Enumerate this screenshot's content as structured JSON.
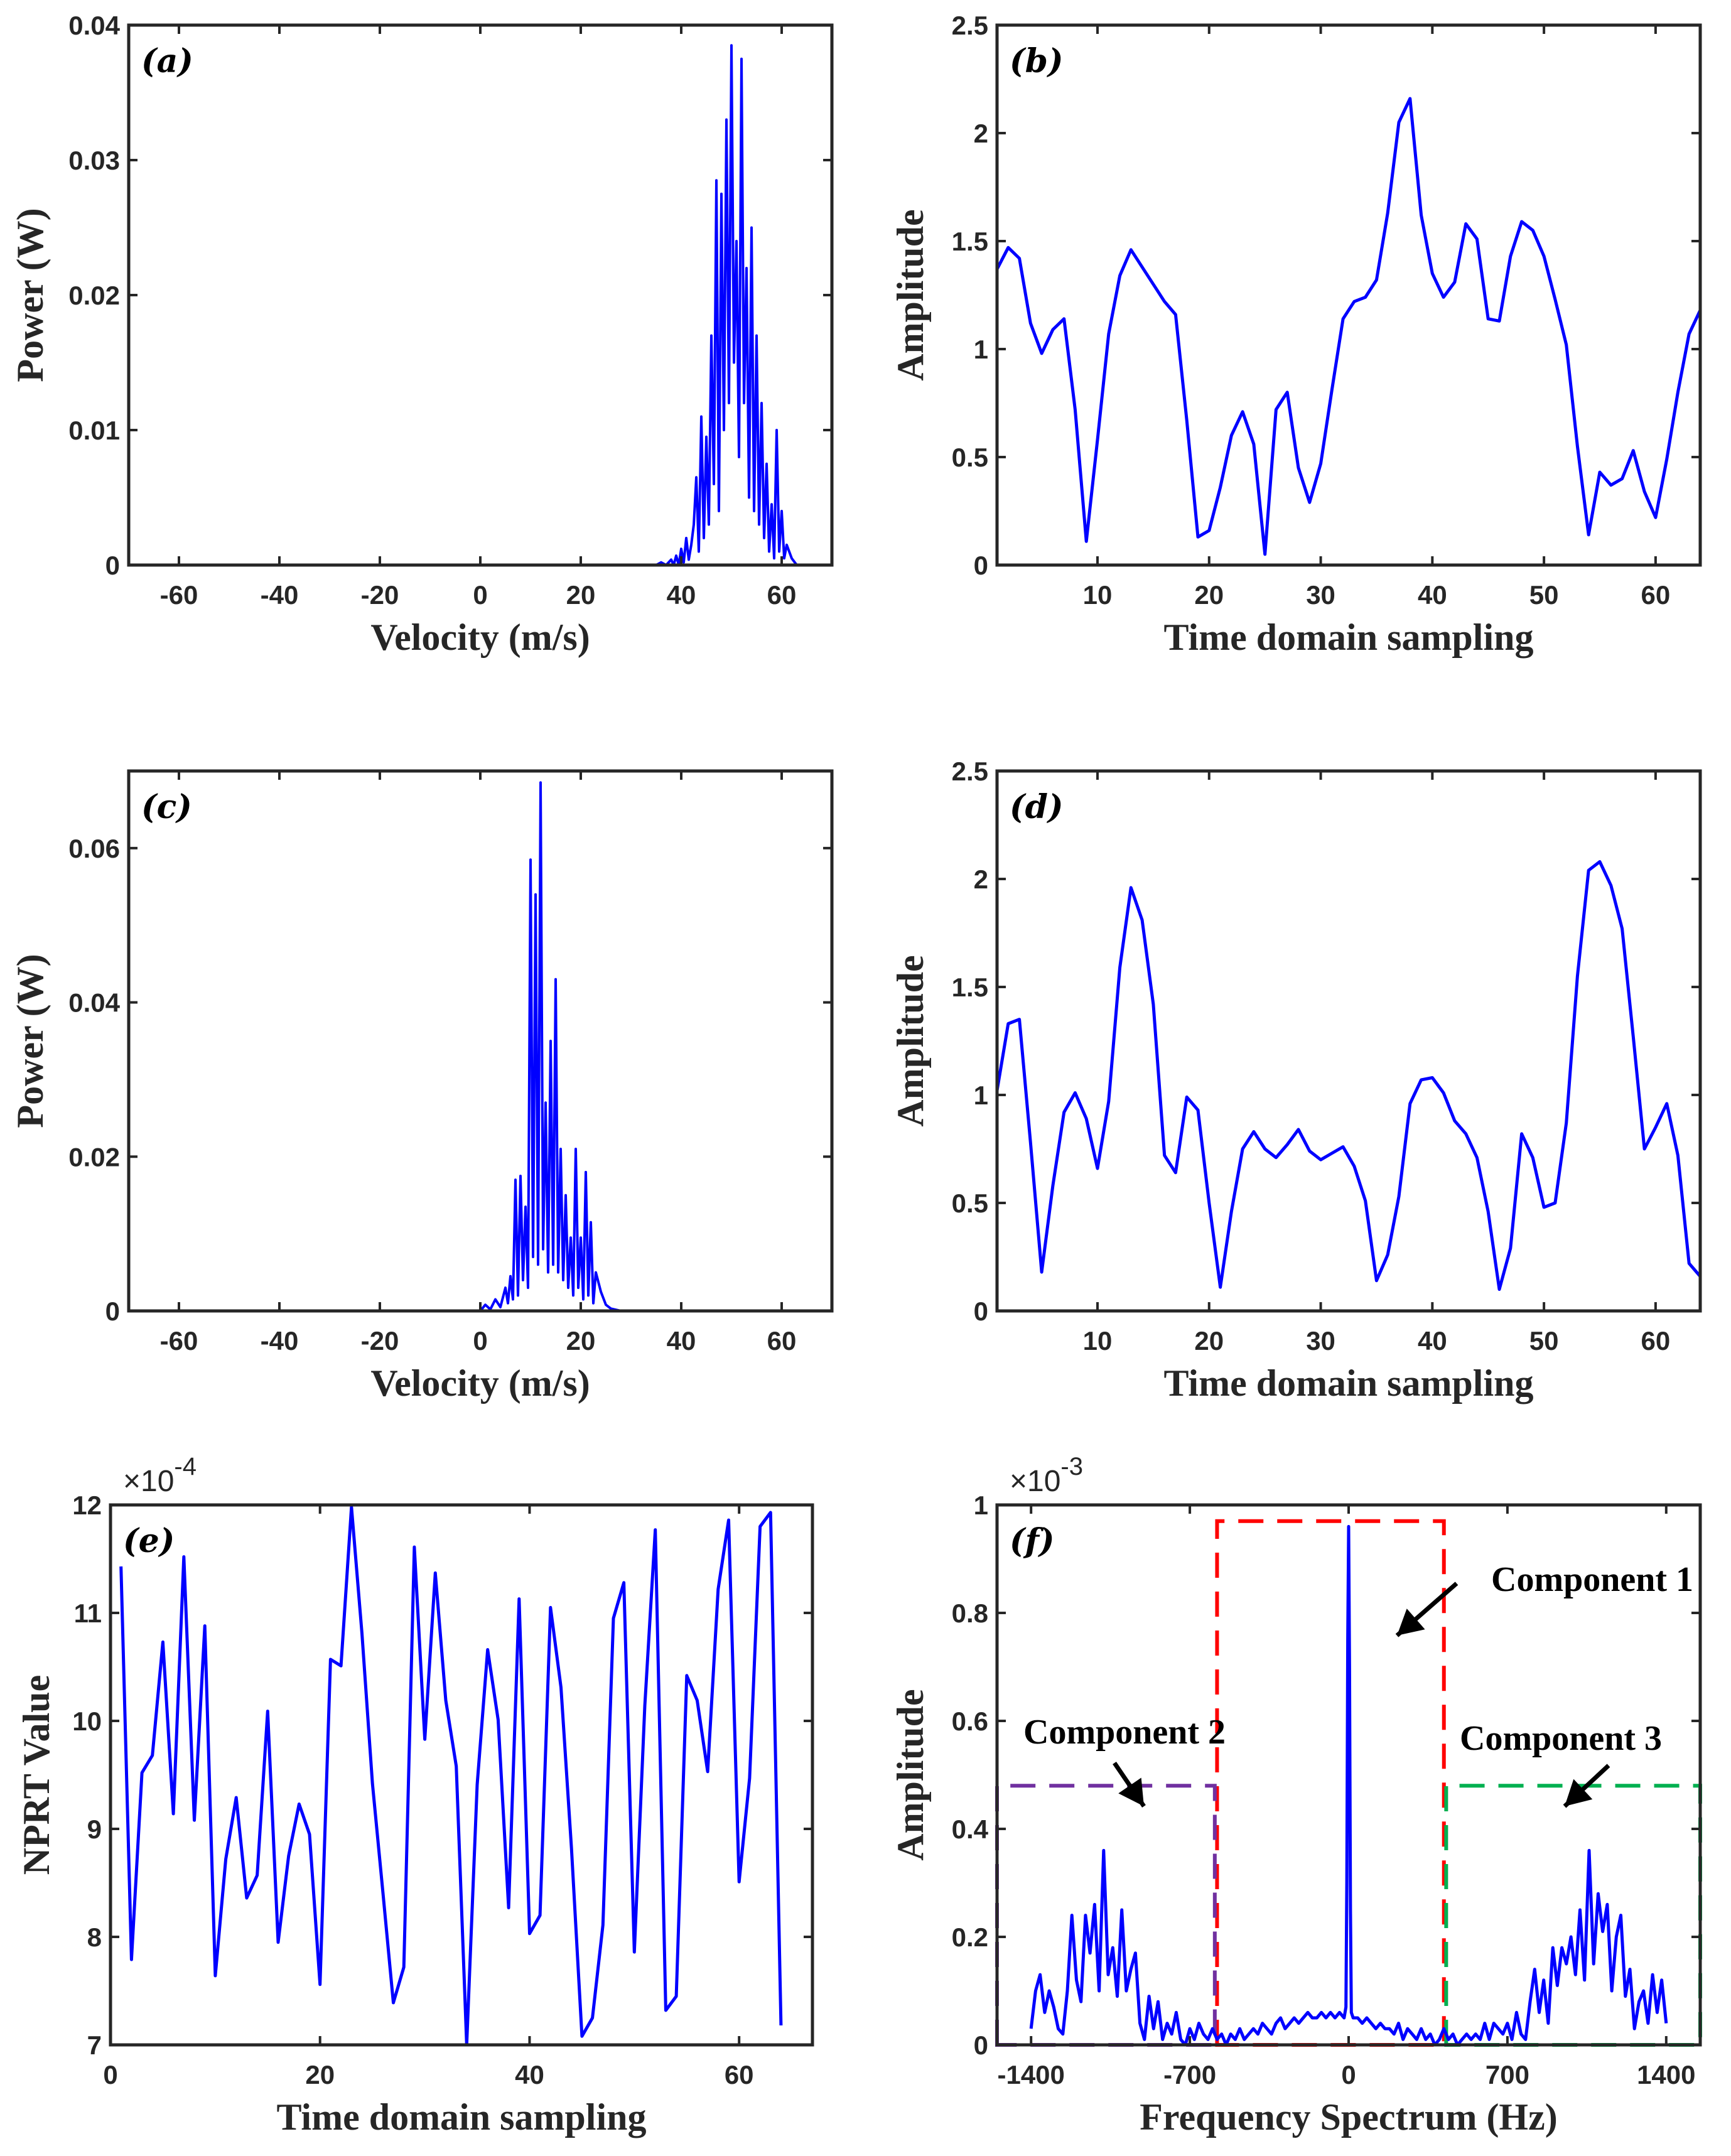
{
  "chart_data": [
    {
      "id": "a",
      "panel_label": "(a)",
      "type": "line",
      "xlabel": "Velocity (m/s)",
      "ylabel": "Power (W)",
      "xlim": [
        -70,
        70
      ],
      "ylim": [
        0,
        0.04
      ],
      "xticks": [
        -60,
        -40,
        -20,
        0,
        20,
        40,
        60
      ],
      "xtick_labels": [
        "-60",
        "-40",
        "-20",
        "0",
        "20",
        "40",
        "60"
      ],
      "yticks": [
        0,
        0.01,
        0.02,
        0.03,
        0.04
      ],
      "ytick_labels": [
        "0",
        "0.01",
        "0.02",
        "0.03",
        "0.04"
      ],
      "color": "#0000ff",
      "x": [
        -70,
        35,
        36,
        37,
        38,
        38.5,
        39,
        39.5,
        40,
        40.5,
        41,
        41.5,
        42,
        42.5,
        43,
        43.5,
        44,
        44.5,
        45,
        45.5,
        46,
        46.5,
        47,
        47.5,
        48,
        48.5,
        49,
        49.5,
        50,
        50.5,
        51,
        51.5,
        52,
        52.5,
        53,
        53.5,
        54,
        54.5,
        55,
        55.5,
        56,
        56.5,
        57,
        57.5,
        58,
        58.5,
        59,
        59.5,
        60,
        60.5,
        61,
        62,
        63,
        70
      ],
      "y": [
        0,
        0,
        0.0002,
        0,
        0.0004,
        0,
        0.0007,
        0,
        0.0012,
        0.0002,
        0.002,
        0.0004,
        0.0015,
        0.003,
        0.0065,
        0.001,
        0.011,
        0.002,
        0.0095,
        0.003,
        0.017,
        0.006,
        0.0285,
        0.004,
        0.0275,
        0.01,
        0.033,
        0.012,
        0.0385,
        0.015,
        0.024,
        0.008,
        0.0375,
        0.012,
        0.022,
        0.005,
        0.025,
        0.004,
        0.017,
        0.003,
        0.012,
        0.002,
        0.0075,
        0.001,
        0.0045,
        0.0005,
        0.01,
        0.001,
        0.004,
        0.0005,
        0.0015,
        0.0005,
        0,
        0
      ]
    },
    {
      "id": "b",
      "panel_label": "(b)",
      "type": "line",
      "xlabel": "Time domain sampling",
      "ylabel": "Amplitude",
      "xlim": [
        1,
        64
      ],
      "ylim": [
        0,
        2.5
      ],
      "xticks": [
        10,
        20,
        30,
        40,
        50,
        60
      ],
      "xtick_labels": [
        "10",
        "20",
        "30",
        "40",
        "50",
        "60"
      ],
      "yticks": [
        0,
        0.5,
        1,
        1.5,
        2,
        2.5
      ],
      "ytick_labels": [
        "0",
        "0.5",
        "1",
        "1.5",
        "2",
        "2.5"
      ],
      "color": "#0000ff",
      "x": [
        1,
        2,
        3,
        4,
        5,
        6,
        7,
        8,
        9,
        10,
        11,
        12,
        13,
        14,
        15,
        16,
        17,
        18,
        19,
        20,
        21,
        22,
        23,
        24,
        25,
        26,
        27,
        28,
        29,
        30,
        31,
        32,
        33,
        34,
        35,
        36,
        37,
        38,
        39,
        40,
        41,
        42,
        43,
        44,
        45,
        46,
        47,
        48,
        49,
        50,
        51,
        52,
        53,
        54,
        55,
        56,
        57,
        58,
        59,
        60,
        61,
        62,
        63,
        64
      ],
      "y": [
        1.37,
        1.47,
        1.42,
        1.12,
        0.98,
        1.09,
        1.14,
        0.72,
        0.11,
        0.58,
        1.07,
        1.34,
        1.46,
        1.38,
        1.3,
        1.22,
        1.16,
        0.67,
        0.13,
        0.16,
        0.36,
        0.6,
        0.71,
        0.56,
        0.05,
        0.72,
        0.8,
        0.45,
        0.29,
        0.47,
        0.81,
        1.14,
        1.22,
        1.24,
        1.32,
        1.63,
        2.05,
        2.16,
        1.62,
        1.35,
        1.24,
        1.31,
        1.58,
        1.51,
        1.14,
        1.13,
        1.43,
        1.59,
        1.55,
        1.43,
        1.23,
        1.02,
        0.55,
        0.14,
        0.43,
        0.37,
        0.4,
        0.53,
        0.34,
        0.22,
        0.49,
        0.8,
        1.07,
        1.18
      ]
    },
    {
      "id": "c",
      "panel_label": "(c)",
      "type": "line",
      "xlabel": "Velocity (m/s)",
      "ylabel": "Power (W)",
      "xlim": [
        -70,
        70
      ],
      "ylim": [
        0,
        0.07
      ],
      "xticks": [
        -60,
        -40,
        -20,
        0,
        20,
        40,
        60
      ],
      "xtick_labels": [
        "-60",
        "-40",
        "-20",
        "0",
        "20",
        "40",
        "60"
      ],
      "yticks": [
        0,
        0.02,
        0.04,
        0.06
      ],
      "ytick_labels": [
        "0",
        "0.02",
        "0.04",
        "0.06"
      ],
      "color": "#0000ff",
      "x": [
        -70,
        0,
        1,
        2,
        3,
        4,
        5,
        5.5,
        6,
        6.5,
        7,
        7.5,
        8,
        8.5,
        9,
        9.5,
        10,
        10.5,
        11,
        11.5,
        12,
        12.5,
        13,
        13.5,
        14,
        14.5,
        15,
        15.5,
        16,
        16.5,
        17,
        17.5,
        18,
        18.5,
        19,
        19.5,
        20,
        20.5,
        21,
        21.5,
        22,
        22.5,
        23,
        24,
        25,
        26,
        28,
        70
      ],
      "y": [
        0,
        0,
        0.0008,
        0.0002,
        0.0015,
        0.0005,
        0.003,
        0.001,
        0.0045,
        0.0015,
        0.017,
        0.002,
        0.0175,
        0.004,
        0.0135,
        0.003,
        0.0585,
        0.007,
        0.054,
        0.006,
        0.0685,
        0.008,
        0.027,
        0.005,
        0.035,
        0.006,
        0.043,
        0.005,
        0.021,
        0.004,
        0.015,
        0.003,
        0.0095,
        0.002,
        0.021,
        0.003,
        0.0095,
        0.0015,
        0.018,
        0.002,
        0.0115,
        0.001,
        0.005,
        0.0025,
        0.0008,
        0.0003,
        0,
        0
      ]
    },
    {
      "id": "d",
      "panel_label": "(d)",
      "type": "line",
      "xlabel": "Time domain sampling",
      "ylabel": "Amplitude",
      "xlim": [
        1,
        64
      ],
      "ylim": [
        0,
        2.5
      ],
      "xticks": [
        10,
        20,
        30,
        40,
        50,
        60
      ],
      "xtick_labels": [
        "10",
        "20",
        "30",
        "40",
        "50",
        "60"
      ],
      "yticks": [
        0,
        0.5,
        1,
        1.5,
        2,
        2.5
      ],
      "ytick_labels": [
        "0",
        "0.5",
        "1",
        "1.5",
        "2",
        "2.5"
      ],
      "color": "#0000ff",
      "x": [
        1,
        2,
        3,
        4,
        5,
        6,
        7,
        8,
        9,
        10,
        11,
        12,
        13,
        14,
        15,
        16,
        17,
        18,
        19,
        20,
        21,
        22,
        23,
        24,
        25,
        26,
        27,
        28,
        29,
        30,
        31,
        32,
        33,
        34,
        35,
        36,
        37,
        38,
        39,
        40,
        41,
        42,
        43,
        44,
        45,
        46,
        47,
        48,
        49,
        50,
        51,
        52,
        53,
        54,
        55,
        56,
        57,
        58,
        59,
        60,
        61,
        62,
        63,
        64
      ],
      "y": [
        1.02,
        1.33,
        1.35,
        0.78,
        0.18,
        0.58,
        0.92,
        1.01,
        0.89,
        0.66,
        0.97,
        1.59,
        1.96,
        1.81,
        1.42,
        0.72,
        0.64,
        0.99,
        0.93,
        0.5,
        0.11,
        0.46,
        0.75,
        0.83,
        0.75,
        0.71,
        0.77,
        0.84,
        0.74,
        0.7,
        0.73,
        0.76,
        0.67,
        0.51,
        0.14,
        0.26,
        0.53,
        0.96,
        1.07,
        1.08,
        1.01,
        0.88,
        0.82,
        0.71,
        0.46,
        0.1,
        0.29,
        0.82,
        0.71,
        0.48,
        0.5,
        0.87,
        1.55,
        2.04,
        2.08,
        1.97,
        1.77,
        1.27,
        0.75,
        0.85,
        0.96,
        0.72,
        0.22,
        0.16
      ]
    },
    {
      "id": "e",
      "panel_label": "(e)",
      "type": "line",
      "xlabel": "Time domain sampling",
      "ylabel": "NPRT Value",
      "exponent_base": "×10",
      "exponent_power": "-4",
      "xlim": [
        0,
        67
      ],
      "ylim": [
        7,
        12
      ],
      "xticks": [
        0,
        20,
        40,
        60
      ],
      "xtick_labels": [
        "0",
        "20",
        "40",
        "60"
      ],
      "yticks": [
        7,
        8,
        9,
        10,
        11,
        12
      ],
      "ytick_labels": [
        "7",
        "8",
        "9",
        "10",
        "11",
        "12"
      ],
      "color": "#0000ff",
      "x": [
        1,
        2,
        3,
        4,
        5,
        6,
        7,
        8,
        9,
        10,
        11,
        12,
        13,
        14,
        15,
        16,
        17,
        18,
        19,
        20,
        21,
        22,
        23,
        24,
        25,
        26,
        27,
        28,
        29,
        30,
        31,
        32,
        33,
        34,
        35,
        36,
        37,
        38,
        39,
        40,
        41,
        42,
        43,
        44,
        45,
        46,
        47,
        48,
        49,
        50,
        51,
        52,
        53,
        54,
        55,
        56,
        57,
        58,
        59,
        60,
        61,
        62,
        63,
        64
      ],
      "y": [
        11.43,
        7.79,
        9.52,
        9.68,
        10.73,
        9.14,
        11.52,
        9.08,
        10.88,
        7.64,
        8.72,
        9.29,
        8.36,
        8.57,
        10.09,
        7.95,
        8.75,
        9.23,
        8.95,
        7.56,
        10.57,
        10.51,
        11.98,
        10.81,
        9.42,
        8.41,
        7.39,
        7.72,
        11.61,
        9.83,
        11.37,
        10.19,
        9.58,
        7.0,
        9.41,
        10.66,
        10.01,
        8.27,
        11.13,
        8.03,
        8.2,
        11.05,
        10.31,
        8.82,
        7.08,
        7.25,
        8.11,
        10.95,
        11.28,
        7.86,
        10.14,
        11.77,
        7.32,
        7.45,
        10.42,
        10.19,
        9.53,
        11.22,
        11.86,
        8.51,
        9.47,
        11.8,
        11.93,
        7.18
      ]
    },
    {
      "id": "f",
      "panel_label": "(f)",
      "type": "line",
      "xlabel": "Frequency Spectrum (Hz)",
      "ylabel": "Amplitude",
      "exponent_base": "×10",
      "exponent_power": "-3",
      "xlim": [
        -1550,
        1550
      ],
      "ylim": [
        0,
        1
      ],
      "xticks": [
        -1400,
        -700,
        0,
        700,
        1400
      ],
      "xtick_labels": [
        "-1400",
        "-700",
        "0",
        "700",
        "1400"
      ],
      "yticks": [
        0,
        0.2,
        0.4,
        0.6,
        0.8,
        1
      ],
      "ytick_labels": [
        "0",
        "0.2",
        "0.4",
        "0.6",
        "0.8",
        "1"
      ],
      "color": "#0000ff",
      "x": [
        -1400,
        -1380,
        -1360,
        -1340,
        -1320,
        -1300,
        -1280,
        -1260,
        -1240,
        -1220,
        -1200,
        -1180,
        -1160,
        -1140,
        -1120,
        -1100,
        -1080,
        -1060,
        -1040,
        -1020,
        -1000,
        -980,
        -960,
        -940,
        -920,
        -900,
        -880,
        -860,
        -840,
        -820,
        -800,
        -780,
        -760,
        -740,
        -720,
        -700,
        -680,
        -660,
        -640,
        -620,
        -600,
        -580,
        -560,
        -540,
        -520,
        -500,
        -480,
        -460,
        -440,
        -420,
        -400,
        -380,
        -360,
        -340,
        -320,
        -300,
        -280,
        -260,
        -240,
        -220,
        -200,
        -180,
        -160,
        -140,
        -120,
        -100,
        -80,
        -60,
        -40,
        -20,
        -12,
        -8,
        -4,
        0,
        4,
        8,
        12,
        20,
        40,
        60,
        80,
        100,
        120,
        140,
        160,
        180,
        200,
        220,
        240,
        260,
        280,
        300,
        320,
        340,
        360,
        380,
        400,
        420,
        440,
        460,
        480,
        500,
        520,
        540,
        560,
        580,
        600,
        620,
        640,
        660,
        680,
        700,
        720,
        740,
        760,
        780,
        800,
        820,
        840,
        860,
        880,
        900,
        920,
        940,
        960,
        980,
        1000,
        1020,
        1040,
        1060,
        1080,
        1100,
        1120,
        1140,
        1160,
        1180,
        1200,
        1220,
        1240,
        1260,
        1280,
        1300,
        1320,
        1340,
        1360,
        1380,
        1400
      ],
      "y": [
        0.03,
        0.1,
        0.13,
        0.06,
        0.1,
        0.07,
        0.03,
        0.02,
        0.1,
        0.24,
        0.12,
        0.08,
        0.24,
        0.17,
        0.26,
        0.1,
        0.36,
        0.13,
        0.18,
        0.09,
        0.25,
        0.1,
        0.14,
        0.17,
        0.04,
        0.01,
        0.09,
        0.03,
        0.08,
        0.01,
        0.04,
        0.02,
        0.06,
        0.01,
        0.0,
        0.03,
        0.01,
        0.04,
        0.02,
        0.01,
        0.03,
        0.01,
        0.02,
        0.0,
        0.02,
        0.01,
        0.03,
        0.01,
        0.02,
        0.03,
        0.02,
        0.04,
        0.03,
        0.02,
        0.04,
        0.05,
        0.03,
        0.04,
        0.05,
        0.04,
        0.05,
        0.06,
        0.05,
        0.05,
        0.06,
        0.05,
        0.06,
        0.05,
        0.06,
        0.05,
        0.07,
        0.3,
        0.75,
        0.96,
        0.7,
        0.25,
        0.06,
        0.05,
        0.05,
        0.04,
        0.05,
        0.04,
        0.03,
        0.04,
        0.03,
        0.03,
        0.02,
        0.04,
        0.01,
        0.03,
        0.02,
        0.01,
        0.03,
        0.01,
        0.02,
        0.0,
        0.01,
        0.03,
        0.01,
        0.02,
        0.0,
        0.01,
        0.02,
        0.01,
        0.02,
        0.01,
        0.04,
        0.01,
        0.04,
        0.03,
        0.02,
        0.04,
        0.01,
        0.06,
        0.02,
        0.01,
        0.08,
        0.14,
        0.06,
        0.12,
        0.04,
        0.18,
        0.11,
        0.18,
        0.15,
        0.2,
        0.13,
        0.25,
        0.12,
        0.36,
        0.15,
        0.28,
        0.21,
        0.26,
        0.1,
        0.2,
        0.24,
        0.09,
        0.14,
        0.03,
        0.08,
        0.1,
        0.04,
        0.13,
        0.06,
        0.12,
        0.04
      ],
      "regions": [
        {
          "label": "Component 1",
          "x0": -580,
          "x1": 420,
          "y0": 0,
          "y1": 0.97,
          "color": "#ff0000"
        },
        {
          "label": "Component 2",
          "x0": -1550,
          "x1": -590,
          "y0": 0,
          "y1": 0.48,
          "color": "#7030a0"
        },
        {
          "label": "Component 3",
          "x0": 430,
          "x1": 1550,
          "y0": 0,
          "y1": 0.48,
          "color": "#00b050"
        }
      ]
    }
  ]
}
